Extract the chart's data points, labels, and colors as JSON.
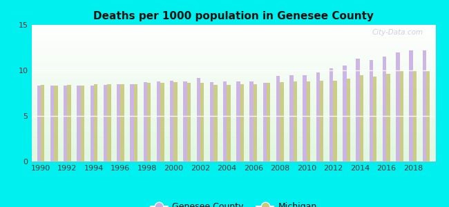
{
  "title": "Deaths per 1000 population in Genesee County",
  "background_color": "#00f0f0",
  "years": [
    1990,
    1991,
    1992,
    1993,
    1994,
    1995,
    1996,
    1997,
    1998,
    1999,
    2000,
    2001,
    2002,
    2003,
    2004,
    2005,
    2006,
    2007,
    2008,
    2009,
    2010,
    2011,
    2012,
    2013,
    2014,
    2015,
    2016,
    2017,
    2018,
    2019
  ],
  "genesee": [
    8.3,
    8.3,
    8.3,
    8.3,
    8.3,
    8.4,
    8.5,
    8.5,
    8.7,
    8.8,
    8.9,
    8.8,
    9.2,
    8.7,
    8.8,
    8.8,
    8.8,
    8.6,
    9.4,
    9.5,
    9.5,
    9.8,
    10.2,
    10.5,
    11.3,
    11.1,
    11.5,
    12.0,
    12.2,
    12.2
  ],
  "michigan": [
    8.4,
    8.3,
    8.4,
    8.3,
    8.5,
    8.5,
    8.5,
    8.5,
    8.6,
    8.6,
    8.7,
    8.6,
    8.6,
    8.4,
    8.4,
    8.5,
    8.5,
    8.6,
    8.7,
    8.8,
    8.8,
    8.9,
    8.9,
    9.1,
    9.5,
    9.3,
    9.6,
    9.9,
    10.0,
    9.9
  ],
  "genesee_color": "#c9aee5",
  "michigan_color": "#c8c87a",
  "ylim": [
    0,
    15
  ],
  "yticks": [
    0,
    5,
    10,
    15
  ],
  "watermark": "City-Data.com",
  "legend_genesee": "Genesee County",
  "legend_michigan": "Michigan",
  "bar_width": 0.28
}
